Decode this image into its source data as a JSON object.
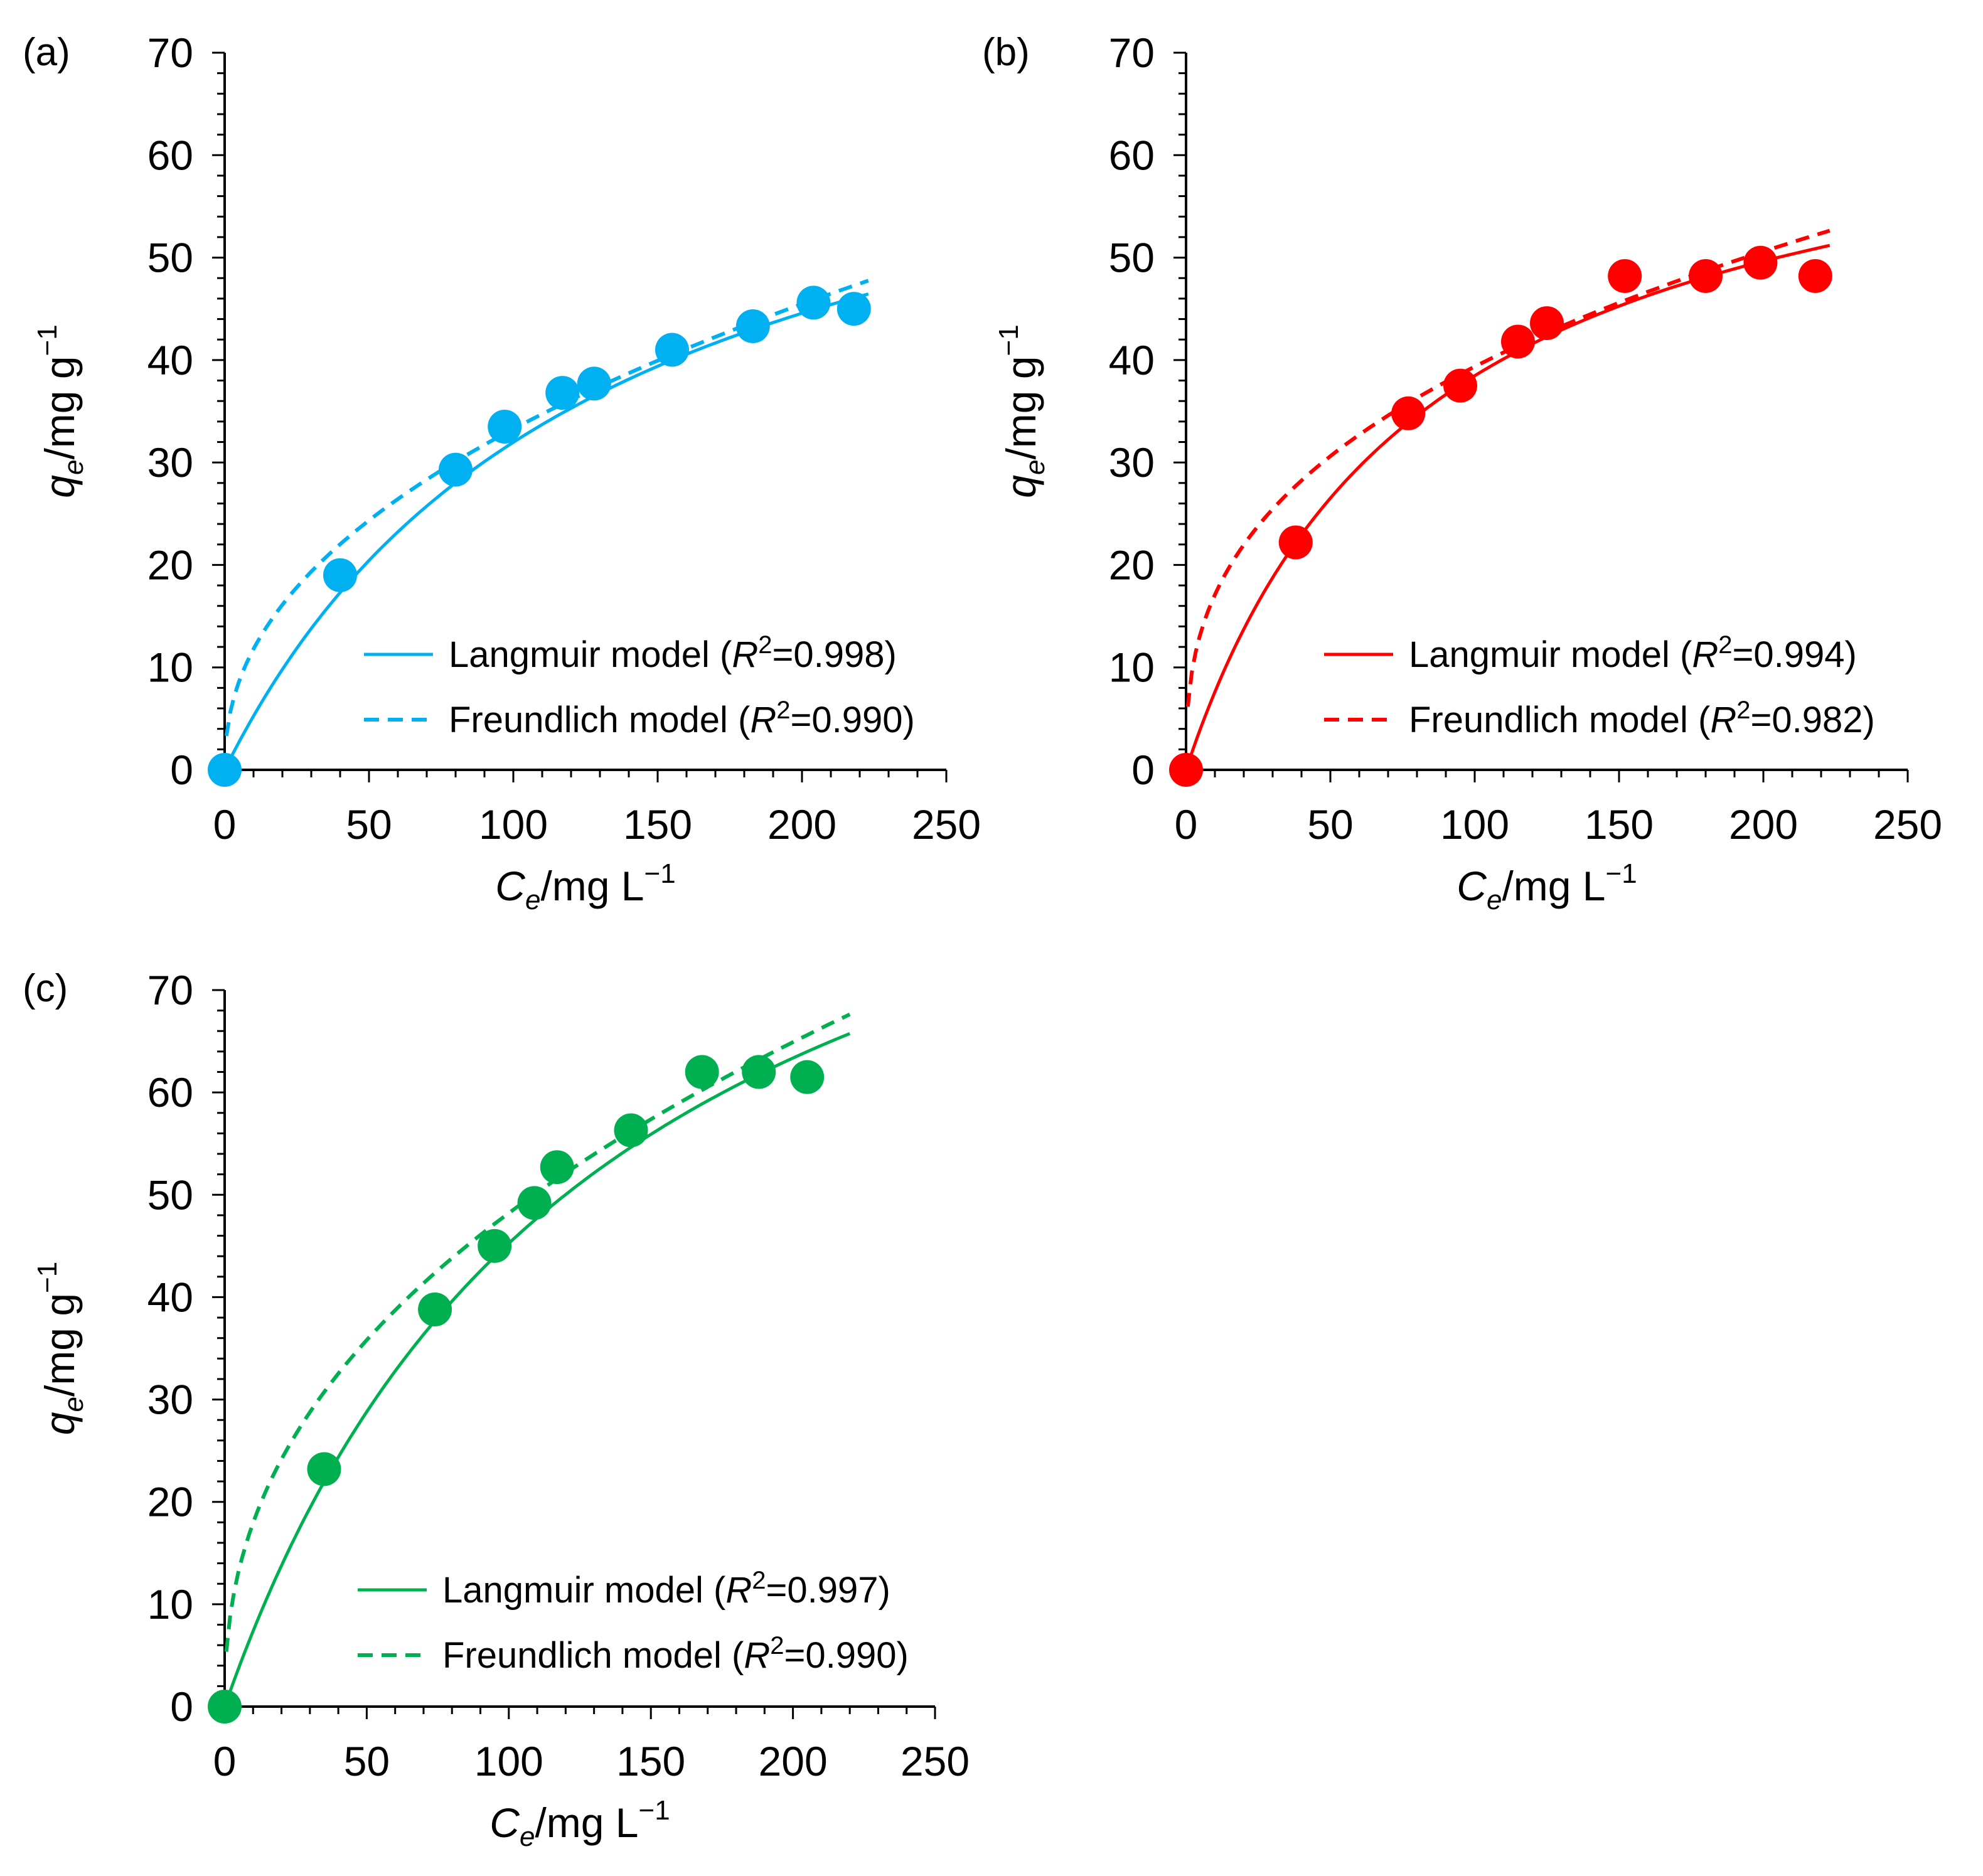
{
  "figure": {
    "panels": [
      "(a)",
      "(b)",
      "(c)"
    ]
  },
  "chart_data": [
    {
      "type": "scatter",
      "panel_label": "(a)",
      "color": "#00B0F0",
      "xlabel": {
        "symbol": "C",
        "sub": "e",
        "unit": "/mg L",
        "sup": "−1"
      },
      "ylabel": {
        "symbol": "q",
        "sub": "e",
        "unit": "/mg g",
        "sup": "−1"
      },
      "xlim": [
        0,
        250
      ],
      "ylim": [
        0,
        70
      ],
      "xticks": [
        "0",
        "50",
        "100",
        "150",
        "200",
        "250"
      ],
      "yticks": [
        "0",
        "10",
        "20",
        "30",
        "40",
        "50",
        "60",
        "70"
      ],
      "points": {
        "x": [
          0,
          40,
          80,
          97,
          117,
          128,
          155,
          183,
          204,
          218
        ],
        "y": [
          0,
          19,
          29.3,
          33.5,
          36.8,
          37.7,
          41,
          43.3,
          45.6,
          45
        ]
      },
      "legend": [
        {
          "label": "Langmuir model (",
          "italic": "R",
          "sup": "2",
          "tail": "=0.998)",
          "style": "solid"
        },
        {
          "label": "Freundlich model (",
          "italic": "R",
          "sup": "2",
          "tail": "=0.990)",
          "style": "dashed"
        }
      ],
      "models": {
        "langmuir": {
          "qmax": 73.5,
          "KL": 0.0077,
          "x_end": 223
        },
        "freundlich": {
          "KF": 4.18,
          "n": 2.22,
          "x_end": 223
        }
      }
    },
    {
      "type": "scatter",
      "panel_label": "(b)",
      "color": "#FF0000",
      "xlabel": {
        "symbol": "C",
        "sub": "e",
        "unit": "/mg L",
        "sup": "−1"
      },
      "ylabel": {
        "symbol": "q",
        "sub": "e",
        "unit": "/mg g",
        "sup": "−1"
      },
      "xlim": [
        0,
        250
      ],
      "ylim": [
        0,
        70
      ],
      "xticks": [
        "0",
        "50",
        "100",
        "150",
        "200",
        "250"
      ],
      "yticks": [
        "0",
        "10",
        "20",
        "30",
        "40",
        "50",
        "60",
        "70"
      ],
      "points": {
        "x": [
          0,
          38,
          77,
          95,
          115,
          125,
          152,
          180,
          199,
          218
        ],
        "y": [
          0,
          22.2,
          34.8,
          37.5,
          41.8,
          43.6,
          48.2,
          48.2,
          49.5,
          48.2
        ]
      },
      "legend": [
        {
          "label": "Langmuir model (",
          "italic": "R",
          "sup": "2",
          "tail": "=0.994)",
          "style": "solid"
        },
        {
          "label": "Freundlich model (",
          "italic": "R",
          "sup": "2",
          "tail": "=0.982)",
          "style": "dashed"
        }
      ],
      "models": {
        "langmuir": {
          "qmax": 70,
          "KL": 0.0122,
          "x_end": 223
        },
        "freundlich": {
          "KF": 7.42,
          "n": 2.76,
          "x_end": 223
        }
      }
    },
    {
      "type": "scatter",
      "panel_label": "(c)",
      "color": "#00B050",
      "xlabel": {
        "symbol": "C",
        "sub": "e",
        "unit": "/mg L",
        "sup": "−1"
      },
      "ylabel": {
        "symbol": "q",
        "sub": "e",
        "unit": "/mg g",
        "sup": "−1"
      },
      "xlim": [
        0,
        250
      ],
      "ylim": [
        0,
        70
      ],
      "xticks": [
        "0",
        "50",
        "100",
        "150",
        "200",
        "250"
      ],
      "yticks": [
        "0",
        "10",
        "20",
        "30",
        "40",
        "50",
        "60",
        "70"
      ],
      "points": {
        "x": [
          0,
          35,
          74,
          95,
          109,
          117,
          143,
          168,
          188,
          205
        ],
        "y": [
          0,
          23.2,
          38.8,
          45,
          49.2,
          52.7,
          56.3,
          62,
          62,
          61.5
        ]
      },
      "legend": [
        {
          "label": "Langmuir model (",
          "italic": "R",
          "sup": "2",
          "tail": "=0.997)",
          "style": "solid"
        },
        {
          "label": "Freundlich model (",
          "italic": "R",
          "sup": "2",
          "tail": "=0.990)",
          "style": "dashed"
        }
      ],
      "models": {
        "langmuir": {
          "qmax": 105.6,
          "KL": 0.0075,
          "x_end": 220
        },
        "freundlich": {
          "KF": 6.68,
          "n": 2.33,
          "x_end": 220
        }
      }
    }
  ]
}
